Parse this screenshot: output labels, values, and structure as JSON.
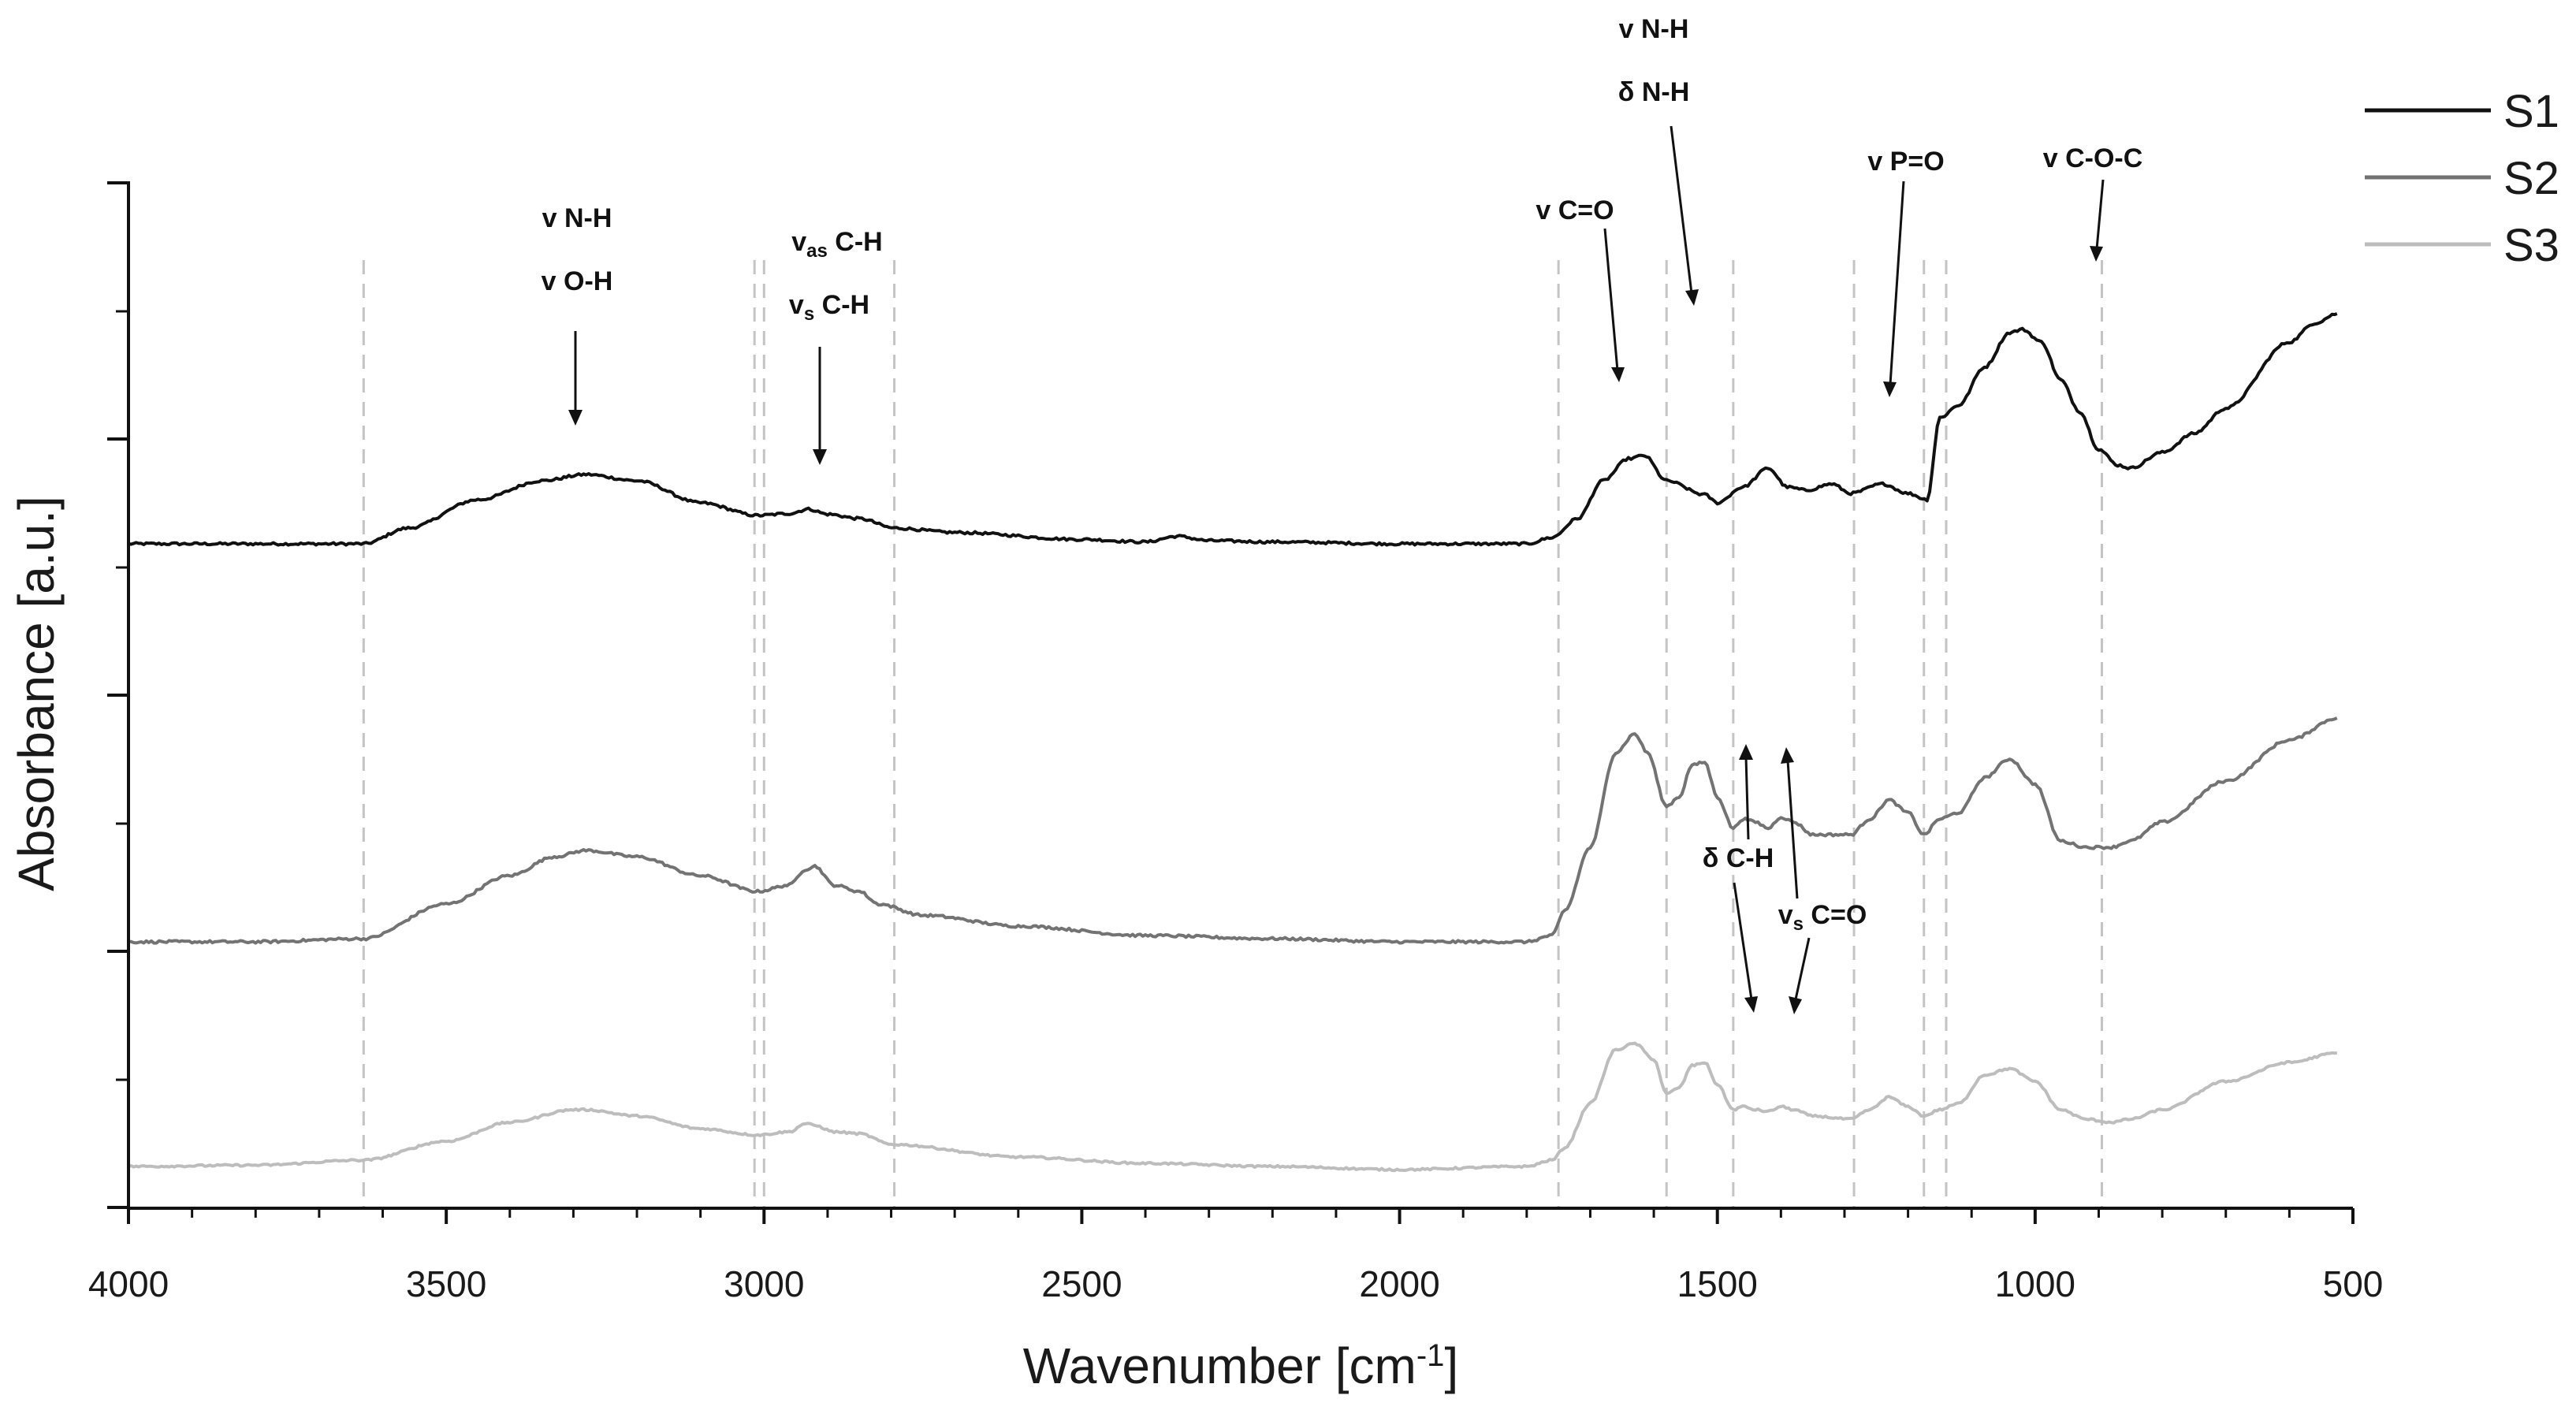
{
  "chart_data": {
    "type": "line",
    "title": "",
    "xlabel_base": "Wavenumber [cm",
    "xlabel_sup": "-1",
    "xlabel_end": "]",
    "ylabel": "Absorbance [a.u.]",
    "xlim": [
      4000,
      500
    ],
    "x_reversed": true,
    "x_ticks": [
      4000,
      3500,
      3000,
      2500,
      2000,
      1500,
      1000,
      500
    ],
    "y_ticks_visible": false,
    "legend": [
      "S1",
      "S2",
      "S3"
    ],
    "legend_position": "top-right",
    "reference_lines": [
      3630,
      3015,
      3000,
      2795,
      1750,
      1580,
      1475,
      1285,
      1175,
      1140,
      895
    ],
    "series": [
      {
        "name": "S1",
        "color": "#111111",
        "baseline": 0.4,
        "noise": 0.004,
        "points": [
          [
            4000,
            0.4
          ],
          [
            3800,
            0.4
          ],
          [
            3630,
            0.4
          ],
          [
            3560,
            0.425
          ],
          [
            3450,
            0.47
          ],
          [
            3350,
            0.5
          ],
          [
            3280,
            0.51
          ],
          [
            3200,
            0.5
          ],
          [
            3100,
            0.465
          ],
          [
            3010,
            0.445
          ],
          [
            2960,
            0.448
          ],
          [
            2930,
            0.455
          ],
          [
            2900,
            0.447
          ],
          [
            2850,
            0.44
          ],
          [
            2795,
            0.425
          ],
          [
            2700,
            0.418
          ],
          [
            2500,
            0.407
          ],
          [
            2400,
            0.403
          ],
          [
            2350,
            0.412
          ],
          [
            2300,
            0.405
          ],
          [
            2200,
            0.403
          ],
          [
            2000,
            0.4
          ],
          [
            1800,
            0.4
          ],
          [
            1760,
            0.41
          ],
          [
            1720,
            0.44
          ],
          [
            1680,
            0.5
          ],
          [
            1640,
            0.535
          ],
          [
            1615,
            0.54
          ],
          [
            1580,
            0.5
          ],
          [
            1520,
            0.478
          ],
          [
            1500,
            0.465
          ],
          [
            1460,
            0.49
          ],
          [
            1420,
            0.52
          ],
          [
            1390,
            0.49
          ],
          [
            1360,
            0.485
          ],
          [
            1320,
            0.495
          ],
          [
            1290,
            0.48
          ],
          [
            1240,
            0.495
          ],
          [
            1200,
            0.48
          ],
          [
            1170,
            0.47
          ],
          [
            1150,
            0.6
          ],
          [
            1120,
            0.62
          ],
          [
            1080,
            0.68
          ],
          [
            1040,
            0.735
          ],
          [
            1020,
            0.74
          ],
          [
            990,
            0.72
          ],
          [
            960,
            0.66
          ],
          [
            930,
            0.61
          ],
          [
            900,
            0.55
          ],
          [
            870,
            0.525
          ],
          [
            850,
            0.52
          ],
          [
            800,
            0.545
          ],
          [
            750,
            0.575
          ],
          [
            700,
            0.615
          ],
          [
            600,
            0.72
          ],
          [
            560,
            0.75
          ],
          [
            525,
            0.765
          ]
        ]
      },
      {
        "name": "S2",
        "color": "#737373",
        "baseline": 0.4,
        "noise": 0.004,
        "points": [
          [
            4000,
            0.4
          ],
          [
            3800,
            0.4
          ],
          [
            3630,
            0.405
          ],
          [
            3500,
            0.46
          ],
          [
            3400,
            0.505
          ],
          [
            3330,
            0.535
          ],
          [
            3280,
            0.545
          ],
          [
            3200,
            0.535
          ],
          [
            3100,
            0.505
          ],
          [
            3010,
            0.48
          ],
          [
            2960,
            0.49
          ],
          [
            2935,
            0.515
          ],
          [
            2920,
            0.52
          ],
          [
            2890,
            0.49
          ],
          [
            2850,
            0.48
          ],
          [
            2820,
            0.46
          ],
          [
            2750,
            0.442
          ],
          [
            2600,
            0.425
          ],
          [
            2400,
            0.41
          ],
          [
            2200,
            0.405
          ],
          [
            2000,
            0.4
          ],
          [
            1800,
            0.4
          ],
          [
            1760,
            0.41
          ],
          [
            1740,
            0.45
          ],
          [
            1700,
            0.55
          ],
          [
            1660,
            0.7
          ],
          [
            1630,
            0.73
          ],
          [
            1610,
            0.7
          ],
          [
            1580,
            0.615
          ],
          [
            1560,
            0.63
          ],
          [
            1540,
            0.68
          ],
          [
            1520,
            0.685
          ],
          [
            1500,
            0.63
          ],
          [
            1475,
            0.58
          ],
          [
            1460,
            0.595
          ],
          [
            1440,
            0.59
          ],
          [
            1420,
            0.58
          ],
          [
            1400,
            0.598
          ],
          [
            1380,
            0.59
          ],
          [
            1350,
            0.57
          ],
          [
            1290,
            0.57
          ],
          [
            1260,
            0.595
          ],
          [
            1230,
            0.625
          ],
          [
            1200,
            0.605
          ],
          [
            1175,
            0.57
          ],
          [
            1150,
            0.595
          ],
          [
            1120,
            0.605
          ],
          [
            1080,
            0.66
          ],
          [
            1040,
            0.69
          ],
          [
            1000,
            0.65
          ],
          [
            960,
            0.56
          ],
          [
            920,
            0.55
          ],
          [
            880,
            0.55
          ],
          [
            850,
            0.56
          ],
          [
            800,
            0.59
          ],
          [
            700,
            0.655
          ],
          [
            600,
            0.72
          ],
          [
            525,
            0.755
          ]
        ]
      },
      {
        "name": "S3",
        "color": "#bdbdbd",
        "baseline": 0.4,
        "noise": 0.003,
        "points": [
          [
            4000,
            0.4
          ],
          [
            3800,
            0.402
          ],
          [
            3630,
            0.41
          ],
          [
            3500,
            0.44
          ],
          [
            3400,
            0.47
          ],
          [
            3300,
            0.49
          ],
          [
            3280,
            0.49
          ],
          [
            3200,
            0.48
          ],
          [
            3100,
            0.46
          ],
          [
            3010,
            0.45
          ],
          [
            2960,
            0.455
          ],
          [
            2935,
            0.468
          ],
          [
            2920,
            0.465
          ],
          [
            2890,
            0.455
          ],
          [
            2850,
            0.452
          ],
          [
            2800,
            0.435
          ],
          [
            2600,
            0.415
          ],
          [
            2400,
            0.405
          ],
          [
            2200,
            0.4
          ],
          [
            2000,
            0.395
          ],
          [
            1800,
            0.4
          ],
          [
            1760,
            0.41
          ],
          [
            1740,
            0.43
          ],
          [
            1700,
            0.5
          ],
          [
            1660,
            0.585
          ],
          [
            1630,
            0.595
          ],
          [
            1600,
            0.57
          ],
          [
            1580,
            0.515
          ],
          [
            1560,
            0.525
          ],
          [
            1540,
            0.56
          ],
          [
            1520,
            0.565
          ],
          [
            1500,
            0.53
          ],
          [
            1475,
            0.49
          ],
          [
            1460,
            0.495
          ],
          [
            1440,
            0.49
          ],
          [
            1420,
            0.487
          ],
          [
            1400,
            0.495
          ],
          [
            1380,
            0.49
          ],
          [
            1350,
            0.48
          ],
          [
            1290,
            0.475
          ],
          [
            1260,
            0.49
          ],
          [
            1230,
            0.51
          ],
          [
            1200,
            0.495
          ],
          [
            1175,
            0.48
          ],
          [
            1150,
            0.49
          ],
          [
            1120,
            0.5
          ],
          [
            1080,
            0.545
          ],
          [
            1040,
            0.555
          ],
          [
            1000,
            0.535
          ],
          [
            960,
            0.49
          ],
          [
            920,
            0.475
          ],
          [
            880,
            0.47
          ],
          [
            850,
            0.475
          ],
          [
            800,
            0.49
          ],
          [
            700,
            0.535
          ],
          [
            600,
            0.565
          ],
          [
            525,
            0.58
          ]
        ]
      }
    ],
    "annotations": [
      {
        "lines": [
          "v N-H",
          "v O-H"
        ],
        "arrow_to_wn": 3280,
        "series": "S1"
      },
      {
        "lines": [
          "vas C-H",
          "vs C-H"
        ],
        "arrow_to_wn": 2925,
        "series": "S1"
      },
      {
        "lines": [
          "v C=O"
        ],
        "arrow_to_wn": 1650,
        "series": "S1"
      },
      {
        "lines": [
          "v N-H",
          "δ N-H"
        ],
        "arrow_to_wn": 1540,
        "series": "S1"
      },
      {
        "lines": [
          "v P=O"
        ],
        "arrow_to_wn": 1230,
        "series": "S1"
      },
      {
        "lines": [
          "v C-O-C"
        ],
        "arrow_to_wn": 970,
        "series": "S1"
      },
      {
        "lines": [
          "δ C-H"
        ],
        "arrow_to_wn": 1450,
        "series": "S2/S3"
      },
      {
        "lines": [
          "vs C=O"
        ],
        "arrow_to_wn": 1385,
        "series": "S2/S3"
      }
    ]
  }
}
